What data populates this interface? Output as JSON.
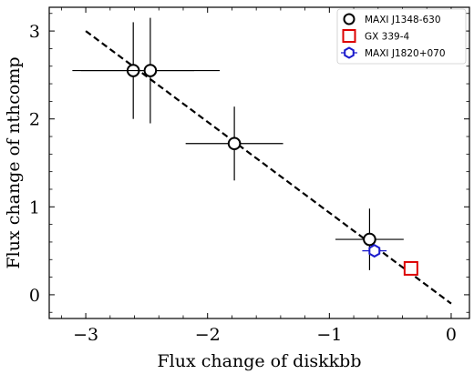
{
  "chart_data": {
    "type": "scatter",
    "xlabel": "Flux change of diskkbb",
    "ylabel": "Flux change of nthcomp",
    "xlim": [
      -3.3,
      0.15
    ],
    "ylim": [
      -0.27,
      3.27
    ],
    "xticks": [
      -3,
      -2,
      -1,
      0
    ],
    "yticks": [
      0,
      1,
      2,
      3
    ],
    "xtick_labels": [
      "−3",
      "−2",
      "−1",
      "0"
    ],
    "ytick_labels": [
      "0",
      "1",
      "2",
      "3"
    ],
    "grid": false,
    "legend_position": "top-right",
    "fit_line": {
      "style": "dashed",
      "color": "#000000",
      "x": [
        -3.0,
        0.0
      ],
      "y": [
        3.0,
        -0.1
      ]
    },
    "series": [
      {
        "name": "MAXI J1348-630",
        "marker": "circle",
        "color": "#000000",
        "points": [
          {
            "x": -2.61,
            "y": 2.55,
            "xerr": 0.5,
            "yerr": 0.55
          },
          {
            "x": -2.47,
            "y": 2.55,
            "xerr": 0.57,
            "yerr": 0.6
          },
          {
            "x": -1.78,
            "y": 1.72,
            "xerr": 0.4,
            "yerr": 0.42
          },
          {
            "x": -0.67,
            "y": 0.63,
            "xerr": 0.28,
            "yerr": 0.35
          }
        ]
      },
      {
        "name": "GX 339-4",
        "marker": "square",
        "color": "#dd0000",
        "points": [
          {
            "x": -0.33,
            "y": 0.3,
            "xerr": 0,
            "yerr": 0
          }
        ]
      },
      {
        "name": "MAXI J1820+070",
        "marker": "hexagon",
        "color": "#1a1acc",
        "points": [
          {
            "x": -0.63,
            "y": 0.5,
            "xerr": 0.1,
            "yerr": 0.07
          }
        ]
      }
    ]
  }
}
